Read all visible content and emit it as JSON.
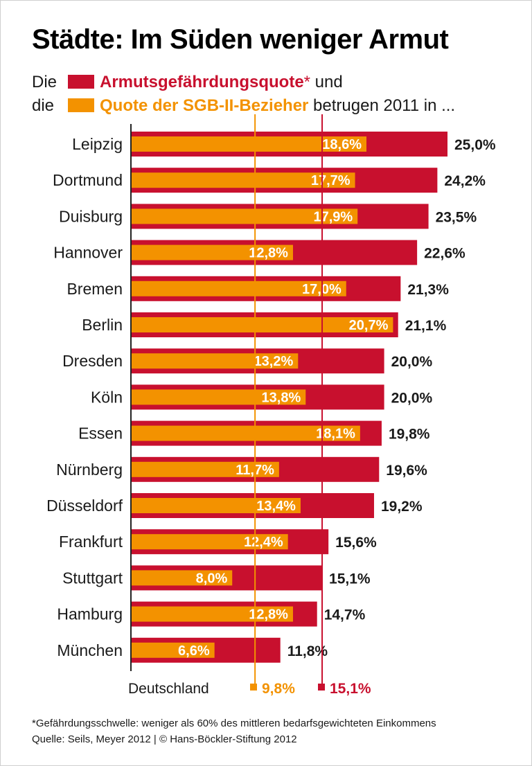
{
  "title": "Städte: Im Süden weniger Armut",
  "legend": {
    "line1_prefix": "Die",
    "line1_key": "Armutsgefährdungsquote",
    "line1_star": "*",
    "line1_suffix": " und",
    "line2_prefix": "die",
    "line2_key": "Quote der SGB-II-Bezieher",
    "line2_suffix": " betrugen 2011 in ..."
  },
  "colors": {
    "poverty": "#c8102e",
    "sgb": "#f39200",
    "text": "#1a1a1a"
  },
  "chart_data": {
    "type": "bar",
    "orientation": "horizontal",
    "categories": [
      "Leipzig",
      "Dortmund",
      "Duisburg",
      "Hannover",
      "Bremen",
      "Berlin",
      "Dresden",
      "Köln",
      "Essen",
      "Nürnberg",
      "Düsseldorf",
      "Frankfurt",
      "Stuttgart",
      "Hamburg",
      "München"
    ],
    "series": [
      {
        "name": "Armutsgefährdungsquote",
        "values": [
          25.0,
          24.2,
          23.5,
          22.6,
          21.3,
          21.1,
          20.0,
          20.0,
          19.8,
          19.6,
          19.2,
          15.6,
          15.1,
          14.7,
          11.8
        ],
        "labels": [
          "25,0%",
          "24,2%",
          "23,5%",
          "22,6%",
          "21,3%",
          "21,1%",
          "20,0%",
          "20,0%",
          "19,8%",
          "19,6%",
          "19,2%",
          "15,6%",
          "15,1%",
          "14,7%",
          "11,8%"
        ]
      },
      {
        "name": "Quote der SGB-II-Bezieher",
        "values": [
          18.6,
          17.7,
          17.9,
          12.8,
          17.0,
          20.7,
          13.2,
          13.8,
          18.1,
          11.7,
          13.4,
          12.4,
          8.0,
          12.8,
          6.6
        ],
        "labels": [
          "18,6%",
          "17,7%",
          "17,9%",
          "12,8%",
          "17,0%",
          "20,7%",
          "13,2%",
          "13,8%",
          "18,1%",
          "11,7%",
          "13,4%",
          "12,4%",
          "8,0%",
          "12,8%",
          "6,6%"
        ]
      }
    ],
    "reference": {
      "label": "Deutschland",
      "sgb_value": 9.8,
      "sgb_label": "9,8%",
      "poverty_value": 15.1,
      "poverty_label": "15,1%"
    },
    "xlim": [
      0,
      25.0
    ]
  },
  "footnote": {
    "line1": "*Gefährdungsschwelle: weniger als 60% des mittleren bedarfsgewichteten Einkommens",
    "line2": "Quelle: Seils, Meyer 2012 | © Hans-Böckler-Stiftung 2012"
  }
}
